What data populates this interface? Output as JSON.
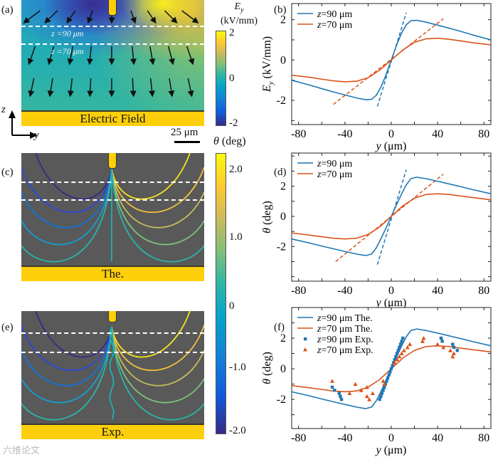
{
  "panels": {
    "a": "(a)",
    "b": "(b)",
    "c": "(c)",
    "d": "(d)",
    "e": "(e)",
    "f": "(f)"
  },
  "left": {
    "z90_label": "z =90 μm",
    "z70_label": "z =70 μm",
    "electrode_a": "Electric Field",
    "electrode_c": "The.",
    "electrode_e": "Exp.",
    "axis_z": "z",
    "axis_y": "y",
    "scalebar": "25 μm"
  },
  "colorbar_e": {
    "title_var": "E",
    "title_sub": "y",
    "unit": "(kV/mm)",
    "ticks": [
      "2",
      "0",
      "-2"
    ]
  },
  "colorbar_theta": {
    "title": "θ (deg)",
    "ticks": [
      "2.0",
      "1.0",
      "0",
      "-1.0",
      "-2.0"
    ]
  },
  "watermark": "六维论文",
  "colors": {
    "blue": "#1f77b4",
    "orange": "#d95319",
    "gold": "#fccf0a",
    "map_bg": "#595959"
  },
  "chart_data": [
    {
      "id": "b",
      "type": "line",
      "xlabel_var": "y",
      "xlabel": " (μm)",
      "ylabel_var": "E",
      "ylabel_sub": "y",
      "ylabel": " (kV/mm)",
      "xlim": [
        -86,
        86
      ],
      "ylim": [
        -3.2,
        2.8
      ],
      "xticks": [
        -80,
        -40,
        0,
        40,
        80
      ],
      "yticks": [
        -2,
        0,
        2
      ],
      "series": [
        {
          "name": "z=90 μm",
          "var": "z",
          "text": "=90 μm",
          "color": "#1f77b4",
          "x": [
            -86,
            -70,
            -60,
            -50,
            -40,
            -30,
            -22,
            -17,
            -13,
            -9,
            -5,
            0,
            5,
            9,
            13,
            17,
            22,
            30,
            40,
            50,
            60,
            70,
            86
          ],
          "y": [
            -1.0,
            -1.25,
            -1.42,
            -1.58,
            -1.73,
            -1.88,
            -1.97,
            -1.95,
            -1.75,
            -1.35,
            -0.8,
            0,
            0.8,
            1.35,
            1.75,
            1.95,
            1.97,
            1.88,
            1.73,
            1.58,
            1.42,
            1.25,
            1.0
          ]
        },
        {
          "name": "z=70 μm",
          "var": "z",
          "text": "=70 μm",
          "color": "#d95319",
          "x": [
            -86,
            -70,
            -60,
            -50,
            -40,
            -30,
            -20,
            -10,
            0,
            10,
            20,
            30,
            40,
            50,
            60,
            70,
            86
          ],
          "y": [
            -0.75,
            -0.86,
            -0.95,
            -1.03,
            -1.08,
            -1.05,
            -0.88,
            -0.5,
            0,
            0.5,
            0.88,
            1.05,
            1.08,
            1.03,
            0.95,
            0.86,
            0.75
          ]
        }
      ],
      "fits": [
        {
          "color": "#1f77b4",
          "x": [
            -12,
            13
          ],
          "y": [
            -2.3,
            2.35
          ]
        },
        {
          "color": "#d95319",
          "x": [
            -50,
            45
          ],
          "y": [
            -2.2,
            2.05
          ]
        }
      ],
      "legend": "top-left"
    },
    {
      "id": "d",
      "type": "line",
      "xlabel_var": "y",
      "xlabel": " (μm)",
      "ylabel_var": "θ",
      "ylabel": " (deg)",
      "xlim": [
        -86,
        86
      ],
      "ylim": [
        -4.3,
        4.2
      ],
      "xticks": [
        -80,
        -40,
        0,
        40,
        80
      ],
      "yticks": [
        -2,
        0,
        2
      ],
      "series": [
        {
          "name": "z=90 μm",
          "var": "z",
          "text": "=90 μm",
          "color": "#1f77b4",
          "x": [
            -86,
            -70,
            -60,
            -50,
            -40,
            -30,
            -22,
            -17,
            -13,
            -9,
            -5,
            0,
            5,
            9,
            13,
            17,
            22,
            30,
            40,
            50,
            60,
            70,
            86
          ],
          "y": [
            -1.5,
            -1.78,
            -1.97,
            -2.15,
            -2.33,
            -2.5,
            -2.6,
            -2.5,
            -2.1,
            -1.5,
            -0.85,
            0,
            0.85,
            1.5,
            2.1,
            2.5,
            2.6,
            2.5,
            2.33,
            2.15,
            1.97,
            1.78,
            1.5
          ]
        },
        {
          "name": "z=70 μm",
          "var": "z",
          "text": "=70 μm",
          "color": "#d95319",
          "x": [
            -86,
            -70,
            -60,
            -50,
            -40,
            -30,
            -20,
            -10,
            0,
            10,
            20,
            30,
            40,
            50,
            60,
            70,
            86
          ],
          "y": [
            -1.1,
            -1.25,
            -1.35,
            -1.45,
            -1.5,
            -1.45,
            -1.2,
            -0.7,
            0,
            0.7,
            1.2,
            1.45,
            1.5,
            1.45,
            1.35,
            1.25,
            1.1
          ]
        }
      ],
      "fits": [
        {
          "color": "#1f77b4",
          "x": [
            -12,
            13
          ],
          "y": [
            -3.2,
            3.1
          ]
        },
        {
          "color": "#d95319",
          "x": [
            -48,
            45
          ],
          "y": [
            -3.0,
            2.8
          ]
        }
      ],
      "legend": "top-left"
    },
    {
      "id": "f",
      "type": "line+scatter",
      "xlabel_var": "y",
      "xlabel": " (μm)",
      "ylabel_var": "θ",
      "ylabel": " (deg)",
      "xlim": [
        -86,
        86
      ],
      "ylim": [
        -3.9,
        4.0
      ],
      "xticks": [
        -80,
        -40,
        0,
        40,
        80
      ],
      "yticks": [
        -2,
        0,
        2
      ],
      "series": [
        {
          "name": "z=90 μm The.",
          "var": "z",
          "text": "=90 μm The.",
          "color": "#1f77b4",
          "x": [
            -86,
            -70,
            -60,
            -50,
            -40,
            -30,
            -22,
            -17,
            -13,
            -9,
            -5,
            0,
            5,
            9,
            13,
            17,
            22,
            30,
            40,
            50,
            60,
            70,
            86
          ],
          "y": [
            -1.5,
            -1.78,
            -1.97,
            -2.15,
            -2.33,
            -2.5,
            -2.6,
            -2.5,
            -2.1,
            -1.5,
            -0.85,
            0,
            0.85,
            1.5,
            2.1,
            2.5,
            2.6,
            2.5,
            2.33,
            2.15,
            1.97,
            1.78,
            1.5
          ]
        },
        {
          "name": "z=70 μm The.",
          "var": "z",
          "text": "=70 μm The.",
          "color": "#d95319",
          "x": [
            -86,
            -70,
            -60,
            -50,
            -40,
            -30,
            -20,
            -10,
            0,
            10,
            20,
            30,
            40,
            50,
            60,
            70,
            86
          ],
          "y": [
            -1.1,
            -1.25,
            -1.35,
            -1.45,
            -1.5,
            -1.45,
            -1.2,
            -0.7,
            0,
            0.7,
            1.2,
            1.45,
            1.5,
            1.45,
            1.35,
            1.25,
            1.1
          ]
        }
      ],
      "scatter": [
        {
          "name": "z=90 μm Exp.",
          "var": "z",
          "text": "=90 μm Exp.",
          "color": "#1f77b4",
          "marker": "square",
          "x": [
            -51,
            -49,
            -45,
            -44,
            -43,
            -10,
            -9,
            -8,
            -7,
            -6,
            -5,
            -4,
            -3,
            -2,
            -1,
            0,
            1,
            2,
            3,
            4,
            5,
            6,
            7,
            8,
            9,
            10,
            43,
            44,
            53,
            54,
            57
          ],
          "y": [
            -1.2,
            -1.4,
            -1.6,
            -1.8,
            -2.0,
            -2.0,
            -1.8,
            -1.6,
            -1.4,
            -1.2,
            -1.0,
            -0.8,
            -0.6,
            -0.4,
            -0.2,
            0,
            0.2,
            0.4,
            0.6,
            0.8,
            1.0,
            1.2,
            1.4,
            1.6,
            1.8,
            2.0,
            2.0,
            1.8,
            1.6,
            1.4,
            1.2
          ]
        },
        {
          "name": "z=70 μm Exp.",
          "var": "z",
          "text": "=70 μm Exp.",
          "color": "#d95319",
          "marker": "triangle",
          "x": [
            -51,
            -36,
            -31,
            -26,
            -21,
            -21,
            -19,
            -16,
            -7,
            -6,
            3,
            5,
            7,
            9,
            11,
            14,
            16,
            27,
            28,
            40,
            45,
            51,
            53,
            54
          ],
          "y": [
            -0.8,
            -1.6,
            -1.0,
            -1.4,
            -1.2,
            -1.8,
            -2.0,
            -1.6,
            -0.8,
            -1.0,
            0.4,
            0.6,
            0.8,
            1.0,
            1.2,
            1.4,
            1.6,
            1.8,
            2.0,
            1.6,
            1.4,
            1.2,
            0.8,
            1.0
          ]
        }
      ],
      "legend": "top-left"
    }
  ]
}
